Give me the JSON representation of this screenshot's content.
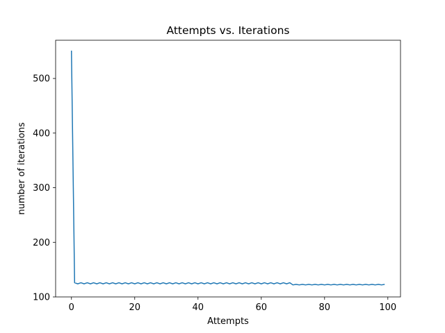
{
  "chart_data": {
    "type": "line",
    "title": "Attempts vs. Iterations",
    "xlabel": "Attempts",
    "ylabel": "number of iterations",
    "xlim": [
      -5,
      104
    ],
    "ylim": [
      100,
      570
    ],
    "x_ticks": [
      0,
      20,
      40,
      60,
      80,
      100
    ],
    "y_ticks": [
      100,
      200,
      300,
      400,
      500
    ],
    "grid": false,
    "legend": "none",
    "series": [
      {
        "color": "#1f77b4",
        "x": [
          0,
          1,
          2,
          3,
          4,
          5,
          6,
          7,
          8,
          9,
          10,
          11,
          12,
          13,
          14,
          15,
          16,
          17,
          18,
          19,
          20,
          21,
          22,
          23,
          24,
          25,
          26,
          27,
          28,
          29,
          30,
          31,
          32,
          33,
          34,
          35,
          36,
          37,
          38,
          39,
          40,
          41,
          42,
          43,
          44,
          45,
          46,
          47,
          48,
          49,
          50,
          51,
          52,
          53,
          54,
          55,
          56,
          57,
          58,
          59,
          60,
          61,
          62,
          63,
          64,
          65,
          66,
          67,
          68,
          69,
          70,
          71,
          72,
          73,
          74,
          75,
          76,
          77,
          78,
          79,
          80,
          81,
          82,
          83,
          84,
          85,
          86,
          87,
          88,
          89,
          90,
          91,
          92,
          93,
          94,
          95,
          96,
          97,
          98,
          99
        ],
        "values": [
          551,
          126,
          124,
          126,
          124,
          126,
          124,
          126,
          124,
          126,
          124,
          126,
          124,
          126,
          124,
          126,
          124,
          126,
          124,
          126,
          124,
          126,
          124,
          126,
          124,
          126,
          124,
          126,
          124,
          126,
          124,
          126,
          124,
          126,
          124,
          126,
          124,
          126,
          124,
          126,
          124,
          126,
          124,
          126,
          124,
          126,
          124,
          126,
          124,
          126,
          124,
          126,
          124,
          126,
          124,
          126,
          124,
          126,
          124,
          126,
          124,
          126,
          124,
          126,
          124,
          126,
          124,
          126,
          124,
          126,
          122,
          123,
          122,
          123,
          122,
          123,
          122,
          123,
          122,
          123,
          122,
          123,
          122,
          123,
          122,
          123,
          122,
          123,
          122,
          123,
          122,
          123,
          122,
          123,
          122,
          123,
          122,
          123,
          122,
          123
        ]
      }
    ]
  }
}
